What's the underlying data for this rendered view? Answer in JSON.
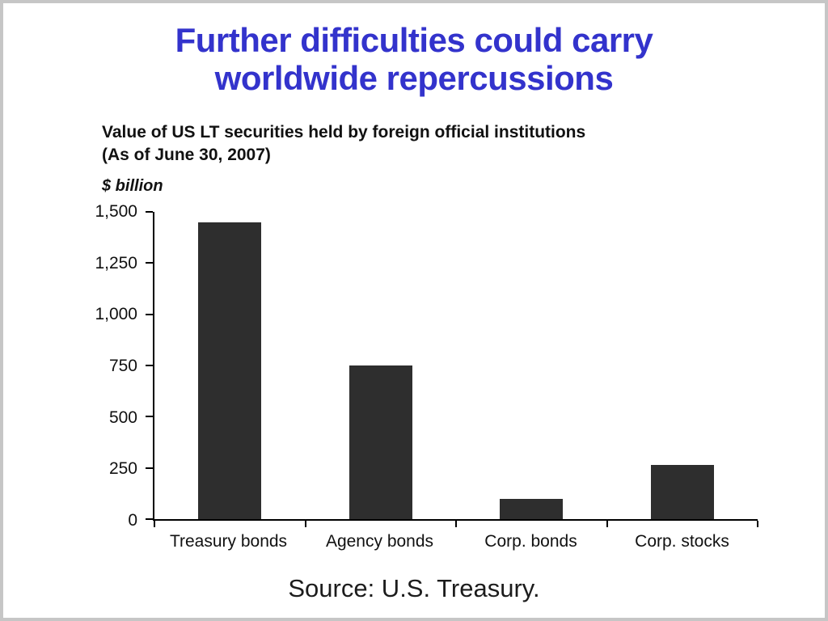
{
  "slide": {
    "title_line1": "Further difficulties could carry",
    "title_line2": "worldwide repercussions",
    "source": "Source: U.S. Treasury."
  },
  "chart": {
    "heading_line1": "Value of US LT securities held by foreign official institutions",
    "heading_line2": "(As of June 30, 2007)",
    "unit": "$ billion"
  },
  "chart_data": {
    "type": "bar",
    "title": "Value of US LT securities held by foreign official institutions (As of June 30, 2007)",
    "ylabel": "$ billion",
    "xlabel": "",
    "categories": [
      "Treasury bonds",
      "Agency bonds",
      "Corp. bonds",
      "Corp. stocks"
    ],
    "values": [
      1450,
      750,
      100,
      265
    ],
    "ylim": [
      0,
      1500
    ],
    "yticks": [
      0,
      250,
      500,
      750,
      1000,
      1250,
      1500
    ],
    "ytick_labels": [
      "0",
      "250",
      "500",
      "750",
      "1,000",
      "1,250",
      "1,500"
    ],
    "grid": false,
    "legend": false
  },
  "colors": {
    "title_blue": "#3333cc",
    "bar": "#2e2e2e",
    "background": "#ffffff"
  }
}
